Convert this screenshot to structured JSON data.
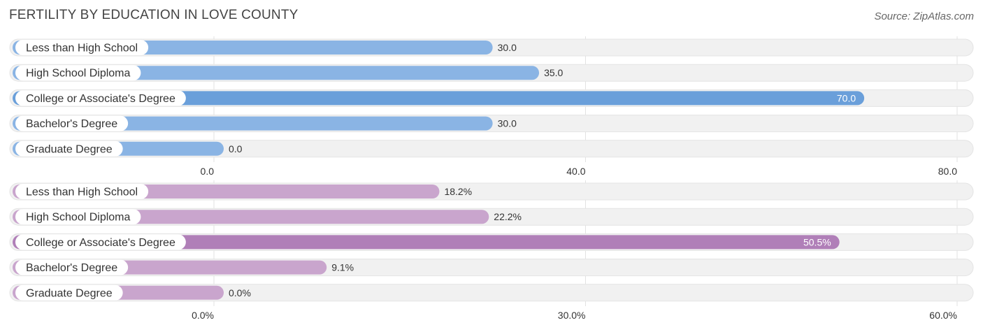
{
  "header": {
    "title": "FERTILITY BY EDUCATION IN LOVE COUNTY",
    "source": "Source: ZipAtlas.com"
  },
  "chart_data": [
    {
      "type": "bar",
      "orientation": "horizontal",
      "categories": [
        "Less than High School",
        "High School Diploma",
        "College or Associate's Degree",
        "Bachelor's Degree",
        "Graduate Degree"
      ],
      "values": [
        30.0,
        35.0,
        70.0,
        30.0,
        0.0
      ],
      "value_labels": [
        "30.0",
        "35.0",
        "70.0",
        "30.0",
        "0.0"
      ],
      "xlim": [
        0,
        80
      ],
      "ticks": [
        0,
        40,
        80
      ],
      "tick_labels": [
        "0.0",
        "40.0",
        "80.0"
      ],
      "bar_color": "#8ab4e4",
      "highlight_color": "#6a9fda",
      "highlight_index": 2,
      "grid": true
    },
    {
      "type": "bar",
      "orientation": "horizontal",
      "categories": [
        "Less than High School",
        "High School Diploma",
        "College or Associate's Degree",
        "Bachelor's Degree",
        "Graduate Degree"
      ],
      "values": [
        18.2,
        22.2,
        50.5,
        9.1,
        0.0
      ],
      "value_labels": [
        "18.2%",
        "22.2%",
        "50.5%",
        "9.1%",
        "0.0%"
      ],
      "xlim": [
        0,
        60
      ],
      "ticks": [
        0,
        30,
        60
      ],
      "tick_labels": [
        "0.0%",
        "30.0%",
        "60.0%"
      ],
      "bar_color": "#c9a5cd",
      "highlight_color": "#b07fb8",
      "highlight_index": 2,
      "grid": true
    }
  ]
}
